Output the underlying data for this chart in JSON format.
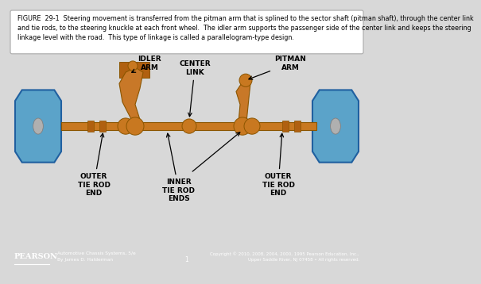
{
  "bg_color": "#d8d8d8",
  "main_bg": "#f2f2f2",
  "footer_bg": "#1a1a1a",
  "figure_caption": "FIGURE 29-1  Steering movement is transferred from the pitman arm that is splined to the sector shaft (pitman shaft), through the center link and tie rods, to the steering knuckle at each front wheel. The idler arm supports the passenger side of the center link and keeps the steering linkage level with the road. This type of linkage is called a parallelogram-type design.",
  "caption_fontsize": 5.8,
  "rod_color": "#c87820",
  "rod_dark": "#8b5500",
  "tire_color": "#5ba3c9",
  "tire_edge": "#2060a0",
  "label_fontsize": 6.5,
  "footer_text_left": "Automotive Chassis Systems, 5/e\nBy James D. Halderman",
  "footer_text_center": "1",
  "footer_text_right": "Copyright © 2010, 2008, 2004, 2000, 1995 Pearson Education, Inc.,\nUpper Saddle River, NJ 07458 • All rights reserved.",
  "pearson_text": "PEARSON"
}
